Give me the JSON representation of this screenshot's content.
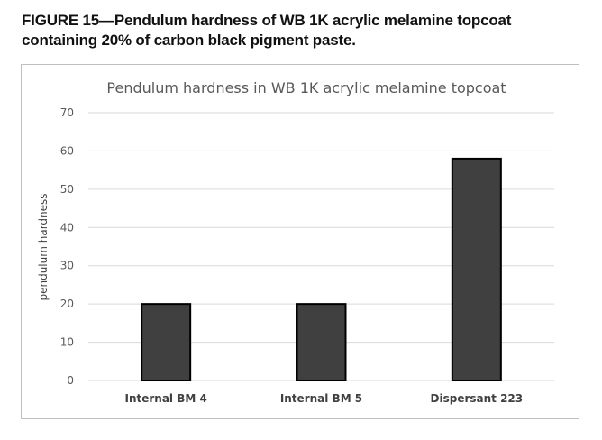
{
  "caption": "FIGURE 15—Pendulum hardness of WB 1K acrylic melamine topcoat containing 20% of carbon black pigment paste.",
  "chart_data": {
    "type": "bar",
    "title": "Pendulum hardness in WB 1K acrylic melamine topcoat",
    "xlabel": "",
    "ylabel": "pendulum hardness",
    "categories": [
      "Internal BM 4",
      "Internal BM 5",
      "Dispersant 223"
    ],
    "values": [
      20,
      20,
      58
    ],
    "ylim": [
      0,
      70
    ],
    "yticks": [
      "0",
      "10",
      "20",
      "30",
      "40",
      "50",
      "60",
      "70"
    ],
    "grid": true,
    "legend": "none",
    "bar_color": "#404040",
    "bar_edge_color": "#000000",
    "grid_color": "#d9d9d9"
  }
}
